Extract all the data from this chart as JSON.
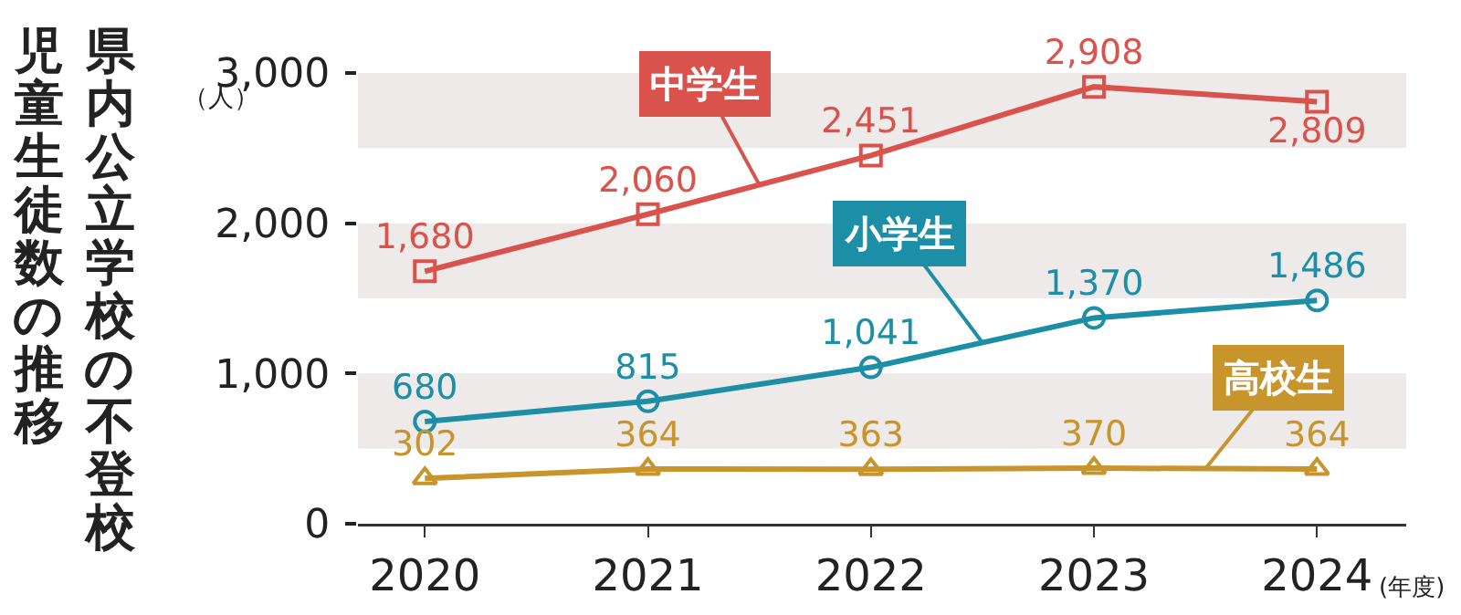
{
  "chart_data": {
    "type": "line",
    "title": "県内公立学校の不登校児童生徒数の推移",
    "ylabel": "（人）",
    "xlabel": "(年度)",
    "categories": [
      "2020",
      "2021",
      "2022",
      "2023",
      "2024"
    ],
    "series": [
      {
        "name": "中学生",
        "color": "#d9534c",
        "values": [
          1680,
          2060,
          2451,
          2908,
          2809
        ],
        "value_labels": [
          "1,680",
          "2,060",
          "2,451",
          "2,908",
          "2,809"
        ],
        "marker": "square"
      },
      {
        "name": "小学生",
        "color": "#1c8fa6",
        "values": [
          680,
          815,
          1041,
          1370,
          1486
        ],
        "value_labels": [
          "680",
          "815",
          "1,041",
          "1,370",
          "1,486"
        ],
        "marker": "circle"
      },
      {
        "name": "高校生",
        "color": "#c8952c",
        "values": [
          302,
          364,
          363,
          370,
          364
        ],
        "value_labels": [
          "302",
          "364",
          "363",
          "370",
          "364"
        ],
        "marker": "triangle"
      }
    ],
    "ylim": [
      0,
      3000
    ],
    "yticks": [
      0,
      {
        "value": 1000,
        "label": "1,000"
      },
      {
        "value": 2000,
        "label": "2,000"
      },
      {
        "value": 3000,
        "label": "3,000"
      }
    ],
    "bands": [
      {
        "axis": "y",
        "from": 500,
        "to": 1000,
        "color": "#eeeaea"
      },
      {
        "axis": "y",
        "from": 1500,
        "to": 2000,
        "color": "#eeeaea"
      },
      {
        "axis": "y",
        "from": 2500,
        "to": 3000,
        "color": "#eeeaea"
      }
    ],
    "legend": false,
    "grid": false,
    "line_style": "solid"
  }
}
